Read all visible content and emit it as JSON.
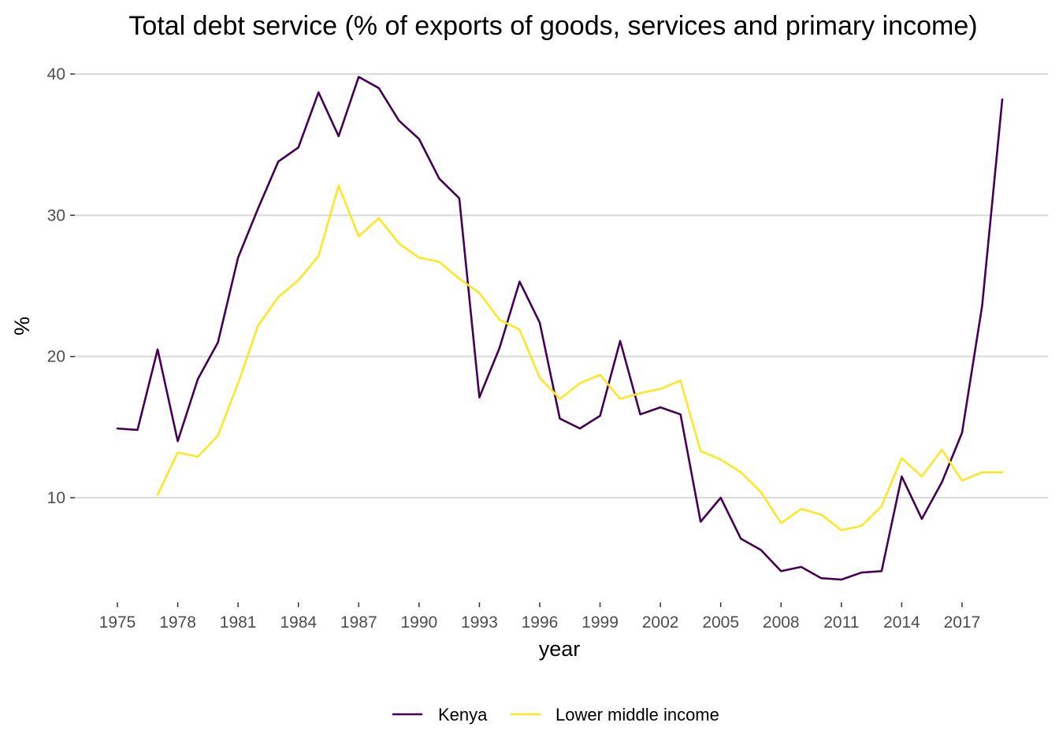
{
  "chart_data": {
    "type": "line",
    "title": "Total debt service (% of exports of goods, services and primary income)",
    "xlabel": "year",
    "ylabel": "%",
    "xlim": [
      1975,
      2019
    ],
    "ylim": [
      3,
      41
    ],
    "x_ticks": [
      1975,
      1978,
      1981,
      1984,
      1987,
      1990,
      1993,
      1996,
      1999,
      2002,
      2005,
      2008,
      2011,
      2014,
      2017
    ],
    "y_ticks": [
      10,
      20,
      30,
      40
    ],
    "grid": "horizontal major lines",
    "legend_position": "bottom",
    "series": [
      {
        "name": "Kenya",
        "color": "#440154",
        "x": [
          1975,
          1976,
          1977,
          1978,
          1979,
          1980,
          1981,
          1982,
          1983,
          1984,
          1985,
          1986,
          1987,
          1988,
          1989,
          1990,
          1991,
          1992,
          1993,
          1994,
          1995,
          1996,
          1997,
          1998,
          1999,
          2000,
          2001,
          2002,
          2003,
          2004,
          2005,
          2006,
          2007,
          2008,
          2009,
          2010,
          2011,
          2012,
          2013,
          2014,
          2015,
          2016,
          2017,
          2018,
          2019
        ],
        "values": [
          14.9,
          14.8,
          20.5,
          14.0,
          18.4,
          21.0,
          27.0,
          30.5,
          33.8,
          34.8,
          38.7,
          35.6,
          39.8,
          39.0,
          36.7,
          35.4,
          32.6,
          31.2,
          17.1,
          20.6,
          25.3,
          22.4,
          15.6,
          14.9,
          15.8,
          21.1,
          15.9,
          16.4,
          15.9,
          8.3,
          10.0,
          7.1,
          6.3,
          4.8,
          5.1,
          4.3,
          4.2,
          4.7,
          4.8,
          11.5,
          8.5,
          11.1,
          14.6,
          23.6,
          38.2
        ]
      },
      {
        "name": "Lower middle income",
        "color": "#fde725",
        "x": [
          1977,
          1978,
          1979,
          1980,
          1981,
          1982,
          1983,
          1984,
          1985,
          1986,
          1987,
          1988,
          1989,
          1990,
          1991,
          1992,
          1993,
          1994,
          1995,
          1996,
          1997,
          1998,
          1999,
          2000,
          2001,
          2002,
          2003,
          2004,
          2005,
          2006,
          2007,
          2008,
          2009,
          2010,
          2011,
          2012,
          2013,
          2014,
          2015,
          2016,
          2017,
          2018,
          2019
        ],
        "values": [
          10.2,
          13.2,
          12.9,
          14.4,
          18.1,
          22.2,
          24.2,
          25.4,
          27.1,
          32.1,
          28.5,
          29.8,
          28.0,
          27.0,
          26.7,
          25.5,
          24.5,
          22.6,
          21.9,
          18.5,
          17.0,
          18.1,
          18.7,
          17.0,
          17.4,
          17.7,
          18.3,
          13.3,
          12.7,
          11.8,
          10.4,
          8.2,
          9.2,
          8.8,
          7.7,
          8.0,
          9.4,
          12.8,
          11.5,
          13.4,
          11.2,
          11.8,
          11.8
        ]
      }
    ]
  }
}
